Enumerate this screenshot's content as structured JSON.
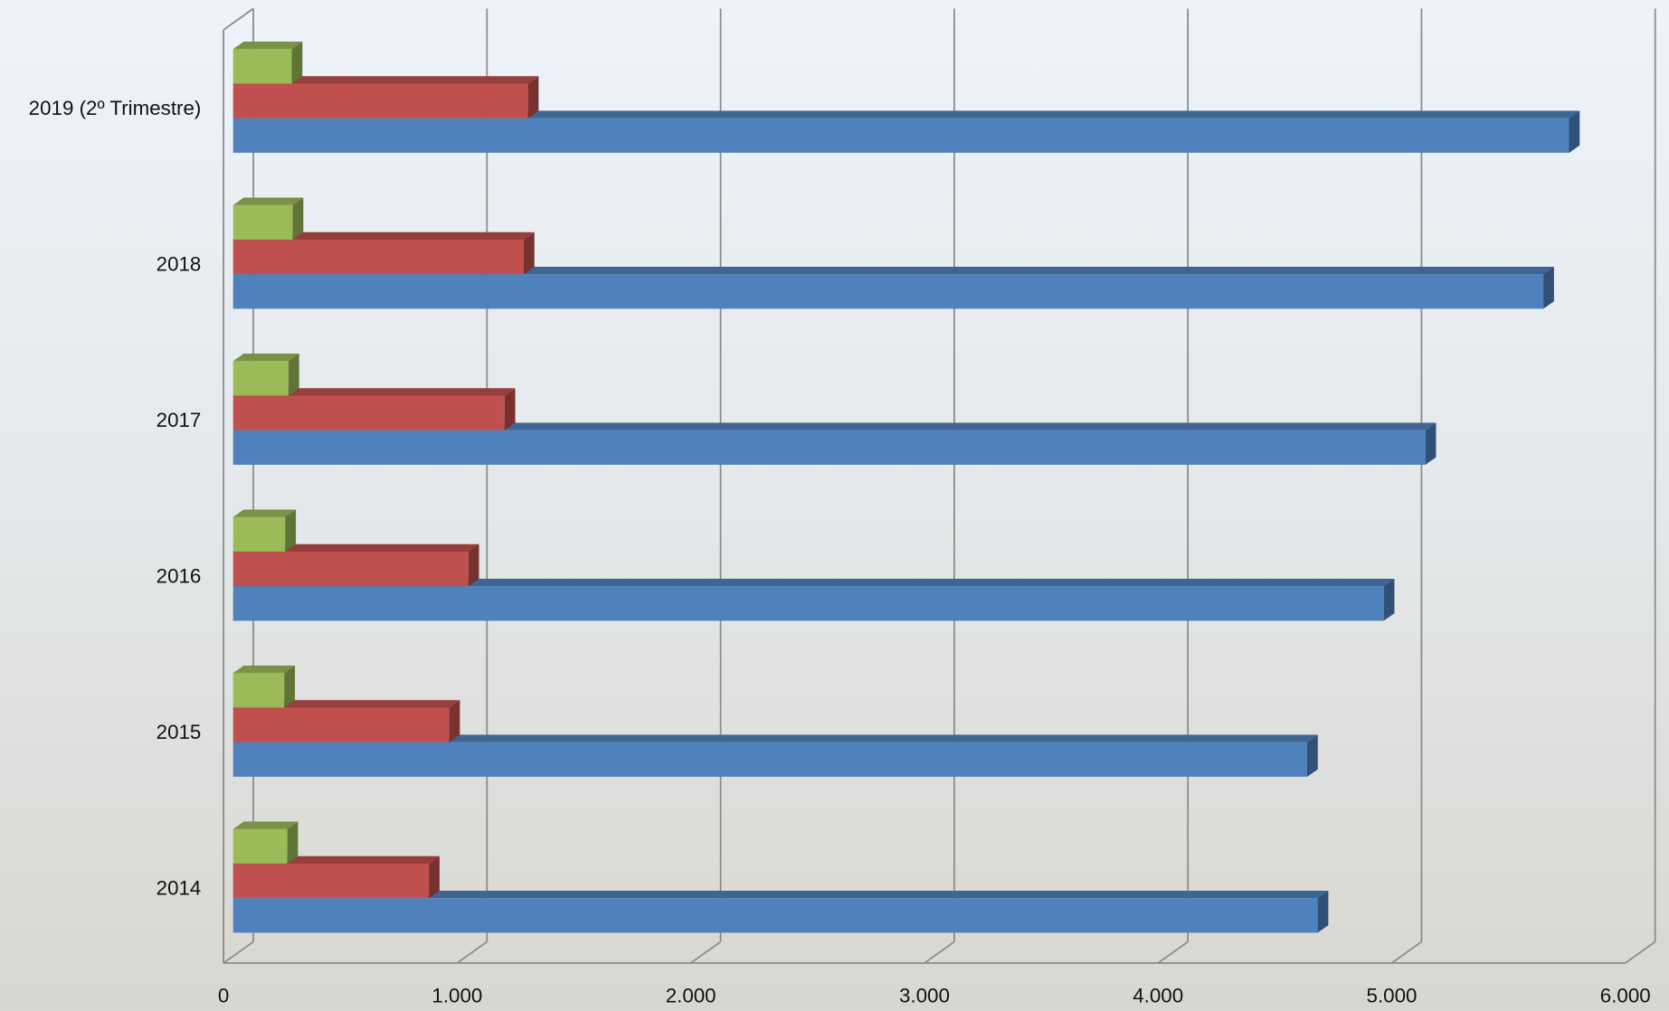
{
  "chart_data": {
    "type": "bar3d",
    "orientation": "horizontal",
    "categories": [
      "2014",
      "2015",
      "2016",
      "2017",
      "2018",
      "2019 (2º Trimestre)"
    ],
    "series": [
      {
        "color": "#4f81bd",
        "values": [
          4642,
          4597,
          4925,
          5103,
          5608,
          5718
        ]
      },
      {
        "color": "#c0504d",
        "values": [
          838,
          925,
          1007,
          1162,
          1244,
          1262
        ]
      },
      {
        "color": "#9bbb59",
        "values": [
          232,
          219,
          223,
          237,
          255,
          251
        ]
      }
    ],
    "xlim": [
      0,
      6000
    ],
    "xticks": [
      0,
      {
        "value": 1000,
        "label": "1.000"
      },
      {
        "value": 2000,
        "label": "2.000"
      },
      {
        "value": 3000,
        "label": "3.000"
      },
      {
        "value": 4000,
        "label": "4.000"
      },
      {
        "value": 5000,
        "label": "5.000"
      },
      {
        "value": 6000,
        "label": "6.000"
      }
    ],
    "grid": true
  }
}
